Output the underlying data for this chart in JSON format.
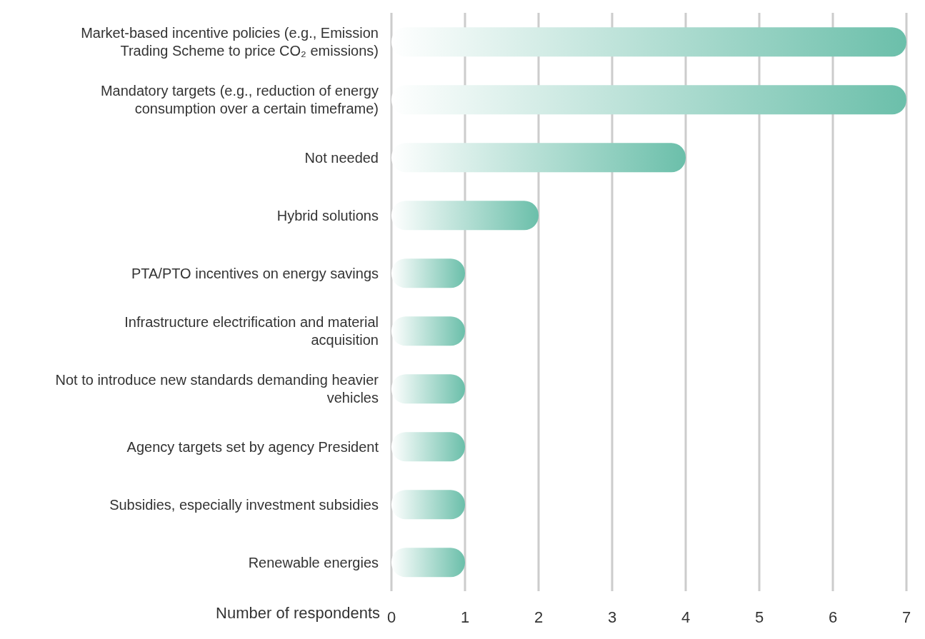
{
  "chart_data": {
    "type": "bar",
    "orientation": "horizontal",
    "xlabel": "Number of respondents",
    "categories": [
      "Market-based incentive policies (e.g., Emission Trading Scheme to price CO₂ emissions)",
      "Mandatory targets (e.g., reduction of energy consumption over a certain timeframe)",
      "Not needed",
      "Hybrid solutions",
      "PTA/PTO incentives on energy savings",
      "Infrastructure electrification and material acquisition",
      "Not to introduce new standards demanding heavier vehicles",
      "Agency targets set by agency President",
      "Subsidies, especially investment subsidies",
      "Renewable energies"
    ],
    "values": [
      7,
      7,
      4,
      2,
      1,
      1,
      1,
      1,
      1,
      1
    ],
    "color": "#6bbfaa",
    "xlim": [
      0,
      7
    ],
    "xticks": [
      0,
      1,
      2,
      3,
      4,
      5,
      6,
      7
    ],
    "grid": "x"
  }
}
